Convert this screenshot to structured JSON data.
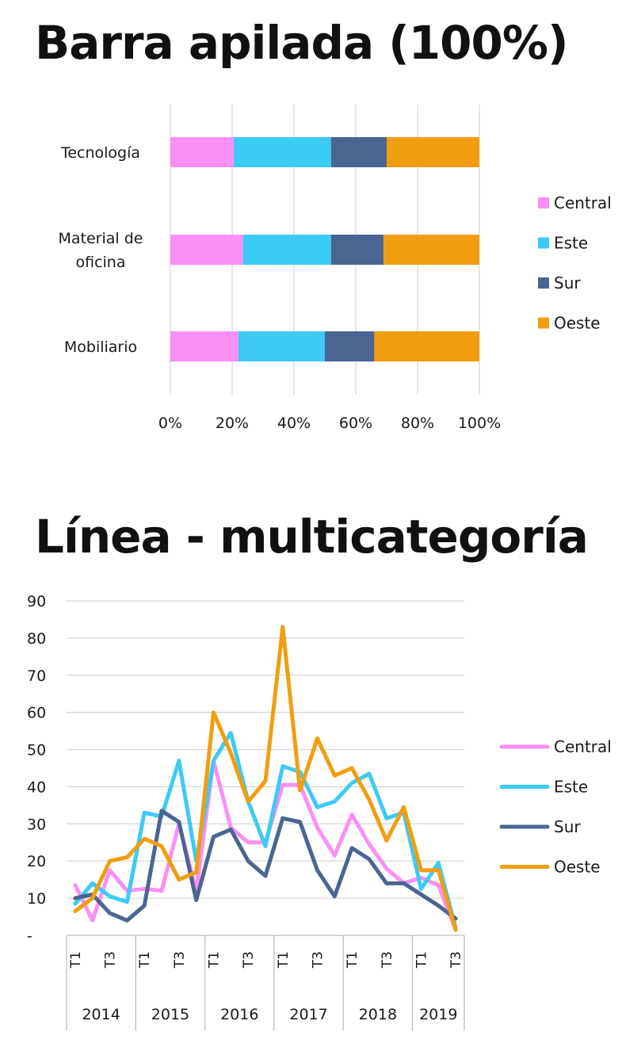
{
  "chart_data": [
    {
      "type": "bar",
      "stacking": "percent",
      "orientation": "horizontal",
      "title": "Barra apilada (100%)",
      "categories": [
        "Tecnología",
        "Material de oficina",
        "Mobiliario"
      ],
      "category_label_lines": [
        [
          "Tecnología"
        ],
        [
          "Material de",
          "oficina"
        ],
        [
          "Mobiliario"
        ]
      ],
      "series": [
        {
          "name": "Central",
          "color": "#fb8ff5",
          "values": [
            20.5,
            23.5,
            22.0
          ]
        },
        {
          "name": "Este",
          "color": "#3dcaf5",
          "values": [
            31.5,
            28.5,
            28.0
          ]
        },
        {
          "name": "Sur",
          "color": "#4a6592",
          "values": [
            18.0,
            17.0,
            16.0
          ]
        },
        {
          "name": "Oeste",
          "color": "#f09e10",
          "values": [
            30.0,
            31.0,
            34.0
          ]
        }
      ],
      "xlim": [
        0,
        100
      ],
      "x_ticks": [
        "0%",
        "20%",
        "40%",
        "60%",
        "80%",
        "100%"
      ],
      "grid": true,
      "legend_position": "right"
    },
    {
      "type": "line",
      "title": "Línea - multicategoría",
      "years": [
        "2014",
        "2015",
        "2016",
        "2017",
        "2018",
        "2019"
      ],
      "quarters_per_year": [
        4,
        4,
        4,
        4,
        4,
        3
      ],
      "quarter_labels": [
        "T1",
        "",
        "T3",
        ""
      ],
      "y_ticks": [
        "-",
        "10",
        "20",
        "30",
        "40",
        "50",
        "60",
        "70",
        "80",
        "90"
      ],
      "ylim": [
        0,
        90
      ],
      "grid": true,
      "legend_position": "right",
      "series": [
        {
          "name": "Central",
          "color": "#fb8ff5",
          "values": [
            13.5,
            4,
            17.5,
            12,
            12.5,
            12,
            30,
            12,
            47,
            29,
            25,
            25,
            40.5,
            40.5,
            29,
            21.5,
            32.5,
            24.5,
            18,
            14,
            15.5,
            13.5,
            1.5
          ]
        },
        {
          "name": "Este",
          "color": "#3dcaf5",
          "values": [
            8.5,
            14,
            10.5,
            9,
            33,
            32,
            47,
            20,
            47,
            54.5,
            36,
            24,
            45.5,
            44,
            34.5,
            36,
            41,
            43.5,
            31.5,
            33,
            12.5,
            19.5,
            2
          ]
        },
        {
          "name": "Sur",
          "color": "#4a6592",
          "values": [
            10,
            11,
            6,
            4,
            8,
            33.5,
            30.5,
            9.5,
            26.5,
            28.5,
            20,
            16,
            31.5,
            30.5,
            17.5,
            10.5,
            23.5,
            20.5,
            14,
            14,
            11,
            8,
            4.5
          ]
        },
        {
          "name": "Oeste",
          "color": "#f09e10",
          "values": [
            6.5,
            10,
            20,
            21,
            26,
            24,
            15,
            17,
            60,
            49,
            36,
            41.5,
            83,
            39,
            53,
            43,
            45,
            36.5,
            25.5,
            34.5,
            17.5,
            17.5,
            1.5
          ]
        }
      ]
    }
  ]
}
